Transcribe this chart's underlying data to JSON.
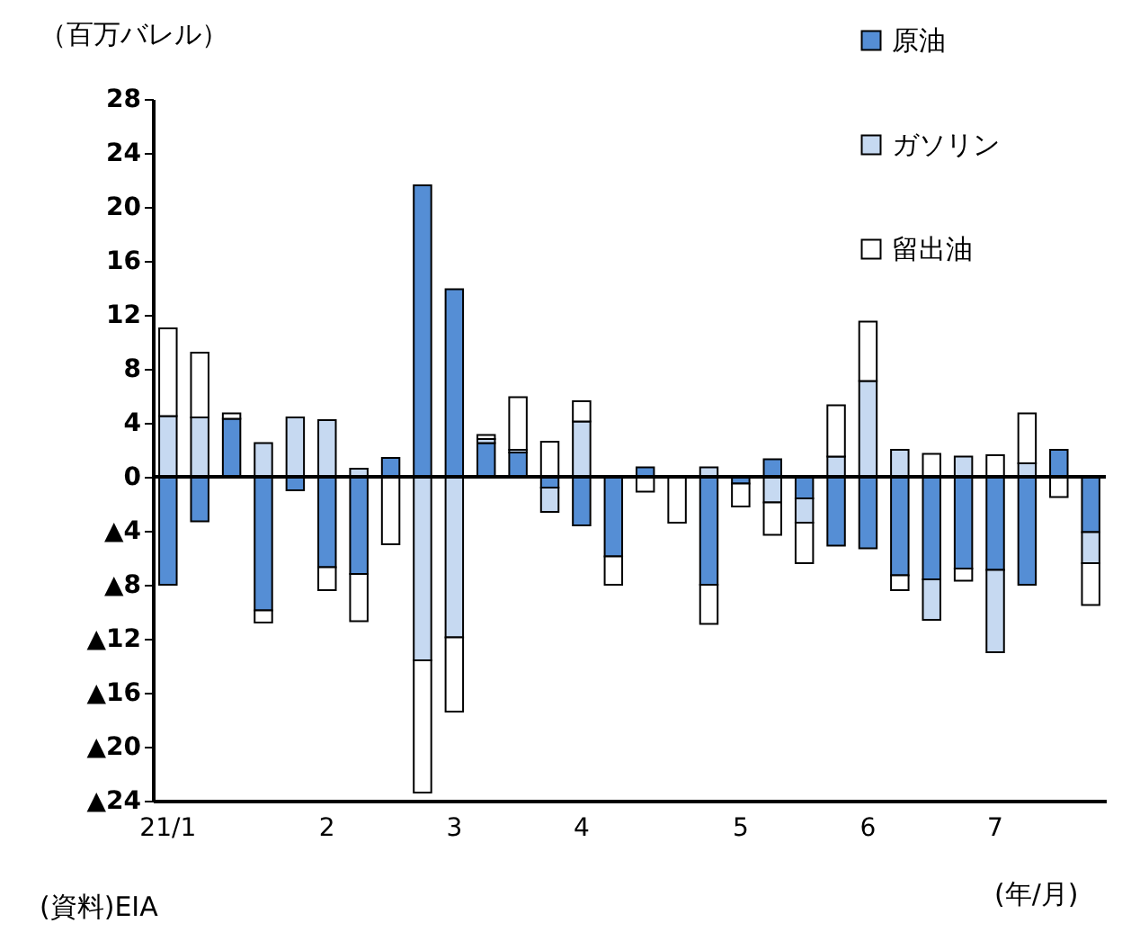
{
  "chart_data": {
    "type": "bar",
    "stacked": true,
    "ylabel": "（百万バレル）",
    "xlabel": "(年/月)",
    "annotations": [
      "(資料)EIA"
    ],
    "categories": [
      "21/1",
      null,
      null,
      null,
      null,
      "2",
      null,
      null,
      null,
      "3",
      null,
      null,
      null,
      "4",
      null,
      null,
      null,
      null,
      "5",
      null,
      null,
      null,
      "6",
      null,
      null,
      null,
      "7",
      null,
      null,
      null
    ],
    "series": [
      {
        "name": "原油",
        "color": "#558ed5",
        "values": [
          -8.0,
          -3.3,
          4.3,
          -9.9,
          -1.0,
          -6.7,
          -7.2,
          1.4,
          21.6,
          13.9,
          2.5,
          1.8,
          -0.8,
          -3.6,
          -5.9,
          0.7,
          null,
          -8.0,
          -0.5,
          1.3,
          -1.6,
          -5.1,
          -5.3,
          -7.3,
          -7.6,
          -6.8,
          -6.9,
          -8.0,
          2.0,
          -4.1
        ]
      },
      {
        "name": "ガソリン",
        "color": "#c6d9f1",
        "values": [
          4.5,
          4.4,
          null,
          2.5,
          4.4,
          4.2,
          0.6,
          null,
          -13.6,
          -11.9,
          0.3,
          0.2,
          -1.8,
          4.1,
          null,
          null,
          null,
          0.7,
          null,
          -1.9,
          -1.8,
          1.5,
          7.1,
          2.0,
          -3.0,
          1.5,
          -6.1,
          1.0,
          null,
          -2.3
        ]
      },
      {
        "name": "留出油",
        "color": "#ffffff",
        "values": [
          6.5,
          4.8,
          0.4,
          -0.9,
          null,
          -1.7,
          -3.5,
          -5.0,
          -9.8,
          -5.5,
          0.3,
          3.9,
          2.6,
          1.5,
          -2.1,
          -1.1,
          -3.4,
          -2.9,
          -1.7,
          -2.4,
          -3.0,
          3.8,
          4.4,
          -1.1,
          1.7,
          -0.9,
          1.6,
          3.7,
          -1.5,
          -3.1
        ]
      }
    ],
    "ylim": [
      -24,
      28
    ],
    "yticks": [
      {
        "value": -24,
        "label": "▲24"
      },
      {
        "value": -20,
        "label": "▲20"
      },
      {
        "value": -16,
        "label": "▲16"
      },
      {
        "value": -12,
        "label": "▲12"
      },
      {
        "value": -8,
        "label": "▲8"
      },
      {
        "value": -4,
        "label": "▲4"
      },
      0,
      4,
      8,
      12,
      16,
      20,
      24,
      28
    ],
    "ref_lines": [
      {
        "axis": "y",
        "value": 0,
        "color": "#000000"
      }
    ],
    "grid": false,
    "legend": "top right"
  }
}
